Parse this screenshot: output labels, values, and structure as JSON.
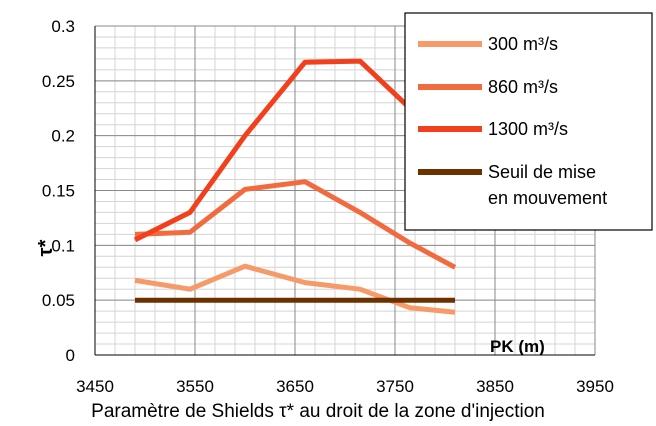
{
  "chart_data": {
    "type": "line",
    "title": "Paramètre de Shields τ* au droit de la zone d'injection",
    "xlabel": "PK (m)",
    "ylabel": "τ*",
    "xlim": [
      3450,
      3950
    ],
    "ylim": [
      0,
      0.3
    ],
    "xticks": [
      3450,
      3550,
      3650,
      3750,
      3850,
      3950
    ],
    "yticks": [
      0,
      0.05,
      0.1,
      0.15,
      0.2,
      0.25,
      0.3
    ],
    "xtick_labels": [
      "3450",
      "3550",
      "3650",
      "3750",
      "3850",
      "3950"
    ],
    "ytick_labels": [
      "0",
      "0.05",
      "0.1",
      "0.15",
      "0.2",
      "0.25",
      "0.3"
    ],
    "grid": true,
    "legend_position": "top-right",
    "series": [
      {
        "name": "300 m³/s",
        "color": "#f79a6a",
        "x": [
          3490,
          3545,
          3600,
          3660,
          3715,
          3765,
          3810
        ],
        "y": [
          0.068,
          0.06,
          0.081,
          0.066,
          0.06,
          0.043,
          0.039
        ]
      },
      {
        "name": "860 m³/s",
        "color": "#f26b3f",
        "x": [
          3490,
          3545,
          3600,
          3660,
          3715,
          3765,
          3810
        ],
        "y": [
          0.11,
          0.112,
          0.151,
          0.158,
          0.13,
          0.102,
          0.08
        ]
      },
      {
        "name": "1300 m³/s",
        "color": "#f2401c",
        "x": [
          3490,
          3545,
          3600,
          3660,
          3715,
          3765,
          3810
        ],
        "y": [
          0.105,
          0.13,
          0.2,
          0.267,
          0.268,
          0.225,
          0.168
        ]
      },
      {
        "name": "Seuil de mise en mouvement",
        "legend_lines": [
          "Seuil de mise",
          "en mouvement"
        ],
        "color": "#6b3200",
        "x": [
          3490,
          3810
        ],
        "y": [
          0.05,
          0.05
        ]
      }
    ]
  }
}
